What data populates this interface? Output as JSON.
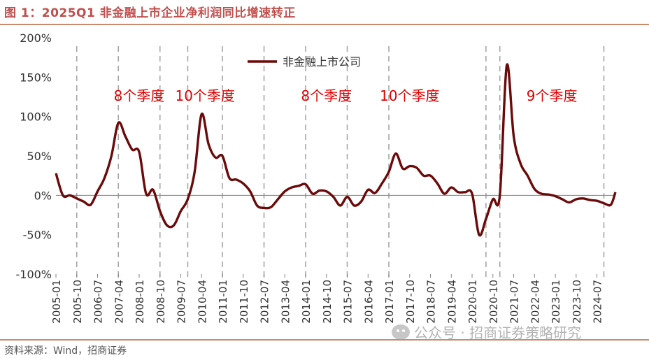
{
  "header": {
    "title": "图 1：2025Q1 非金融上市企业净利润同比增速转正"
  },
  "footer": {
    "source": "资料来源：Wind，招商证券"
  },
  "watermark": {
    "text": "公众号 · 招商证券策略研究",
    "icon": "wechat-icon"
  },
  "colors": {
    "title": "#c0504d",
    "series": "#6b0a0a",
    "annotation": "#e00000",
    "guide": "#a6a6a6",
    "rule": "#c98a6e"
  },
  "chart_data": {
    "type": "line",
    "title": "",
    "xlabel": "",
    "ylabel": "",
    "ylim": [
      -100,
      200
    ],
    "yticks": [
      -100,
      -50,
      0,
      50,
      100,
      150,
      200
    ],
    "ytick_labels": [
      "-100%",
      "-50%",
      "0%",
      "50%",
      "100%",
      "150%",
      "200%"
    ],
    "xtick_labels": [
      "2005-01",
      "2005-10",
      "2006-07",
      "2007-04",
      "2008-01",
      "2008-10",
      "2009-07",
      "2010-04",
      "2011-01",
      "2011-10",
      "2012-07",
      "2013-04",
      "2014-01",
      "2014-10",
      "2015-07",
      "2016-04",
      "2017-01",
      "2017-10",
      "2018-07",
      "2019-04",
      "2020-01",
      "2020-10",
      "2021-07",
      "2022-04",
      "2023-01",
      "2023-10",
      "2024-07"
    ],
    "x_range": [
      "2005-01",
      "2025-03"
    ],
    "legend": {
      "position": "top-center"
    },
    "grid": false,
    "series": [
      {
        "name": "非金融上市公司",
        "points": [
          [
            "2005-01",
            28
          ],
          [
            "2005-04",
            0
          ],
          [
            "2005-07",
            0
          ],
          [
            "2005-10",
            -4
          ],
          [
            "2006-01",
            -8
          ],
          [
            "2006-04",
            -12
          ],
          [
            "2006-07",
            5
          ],
          [
            "2006-10",
            22
          ],
          [
            "2007-01",
            50
          ],
          [
            "2007-04",
            92
          ],
          [
            "2007-07",
            75
          ],
          [
            "2007-10",
            58
          ],
          [
            "2008-01",
            55
          ],
          [
            "2008-04",
            2
          ],
          [
            "2008-07",
            7
          ],
          [
            "2008-10",
            -20
          ],
          [
            "2009-01",
            -38
          ],
          [
            "2009-04",
            -38
          ],
          [
            "2009-07",
            -20
          ],
          [
            "2009-10",
            -5
          ],
          [
            "2010-01",
            30
          ],
          [
            "2010-04",
            103
          ],
          [
            "2010-07",
            65
          ],
          [
            "2010-10",
            48
          ],
          [
            "2011-01",
            50
          ],
          [
            "2011-04",
            22
          ],
          [
            "2011-07",
            20
          ],
          [
            "2011-10",
            15
          ],
          [
            "2012-01",
            5
          ],
          [
            "2012-04",
            -13
          ],
          [
            "2012-07",
            -16
          ],
          [
            "2012-10",
            -15
          ],
          [
            "2013-01",
            -5
          ],
          [
            "2013-04",
            5
          ],
          [
            "2013-07",
            10
          ],
          [
            "2013-10",
            12
          ],
          [
            "2014-01",
            14
          ],
          [
            "2014-04",
            2
          ],
          [
            "2014-07",
            6
          ],
          [
            "2014-10",
            5
          ],
          [
            "2015-01",
            -2
          ],
          [
            "2015-04",
            -13
          ],
          [
            "2015-07",
            -2
          ],
          [
            "2015-10",
            -13
          ],
          [
            "2016-01",
            -8
          ],
          [
            "2016-04",
            7
          ],
          [
            "2016-07",
            3
          ],
          [
            "2016-10",
            15
          ],
          [
            "2017-01",
            30
          ],
          [
            "2017-04",
            53
          ],
          [
            "2017-07",
            34
          ],
          [
            "2017-10",
            37
          ],
          [
            "2018-01",
            35
          ],
          [
            "2018-04",
            25
          ],
          [
            "2018-07",
            25
          ],
          [
            "2018-10",
            15
          ],
          [
            "2019-01",
            2
          ],
          [
            "2019-04",
            10
          ],
          [
            "2019-07",
            4
          ],
          [
            "2019-10",
            4
          ],
          [
            "2020-01",
            2
          ],
          [
            "2020-04",
            -50
          ],
          [
            "2020-07",
            -30
          ],
          [
            "2020-10",
            -5
          ],
          [
            "2021-01",
            0
          ],
          [
            "2021-04",
            165
          ],
          [
            "2021-07",
            75
          ],
          [
            "2021-10",
            40
          ],
          [
            "2022-01",
            25
          ],
          [
            "2022-04",
            8
          ],
          [
            "2022-07",
            2
          ],
          [
            "2022-10",
            1
          ],
          [
            "2023-01",
            -1
          ],
          [
            "2023-04",
            -5
          ],
          [
            "2023-07",
            -9
          ],
          [
            "2023-10",
            -5
          ],
          [
            "2024-01",
            -4
          ],
          [
            "2024-04",
            -6
          ],
          [
            "2024-07",
            -7
          ],
          [
            "2024-10",
            -10
          ],
          [
            "2025-01",
            -12
          ],
          [
            "2025-03",
            4
          ]
        ]
      }
    ],
    "guide_lines": [
      "2005-10",
      "2007-04",
      "2008-10",
      "2009-10",
      "2011-01",
      "2012-07",
      "2014-01",
      "2015-07",
      "2017-01",
      "2020-07",
      "2021-01",
      "2024-10"
    ],
    "annotations": [
      {
        "text": "8个季度",
        "between": [
          "2007-04",
          "2008-10"
        ]
      },
      {
        "text": "10个季度",
        "between": [
          "2009-10",
          "2011-01"
        ]
      },
      {
        "text": "8个季度",
        "between": [
          "2014-01",
          "2015-07"
        ]
      },
      {
        "text": "10个季度",
        "between": [
          "2017-01",
          "2018-07"
        ]
      },
      {
        "text": "9个季度",
        "between": [
          "2021-01",
          "2024-10"
        ]
      }
    ]
  }
}
